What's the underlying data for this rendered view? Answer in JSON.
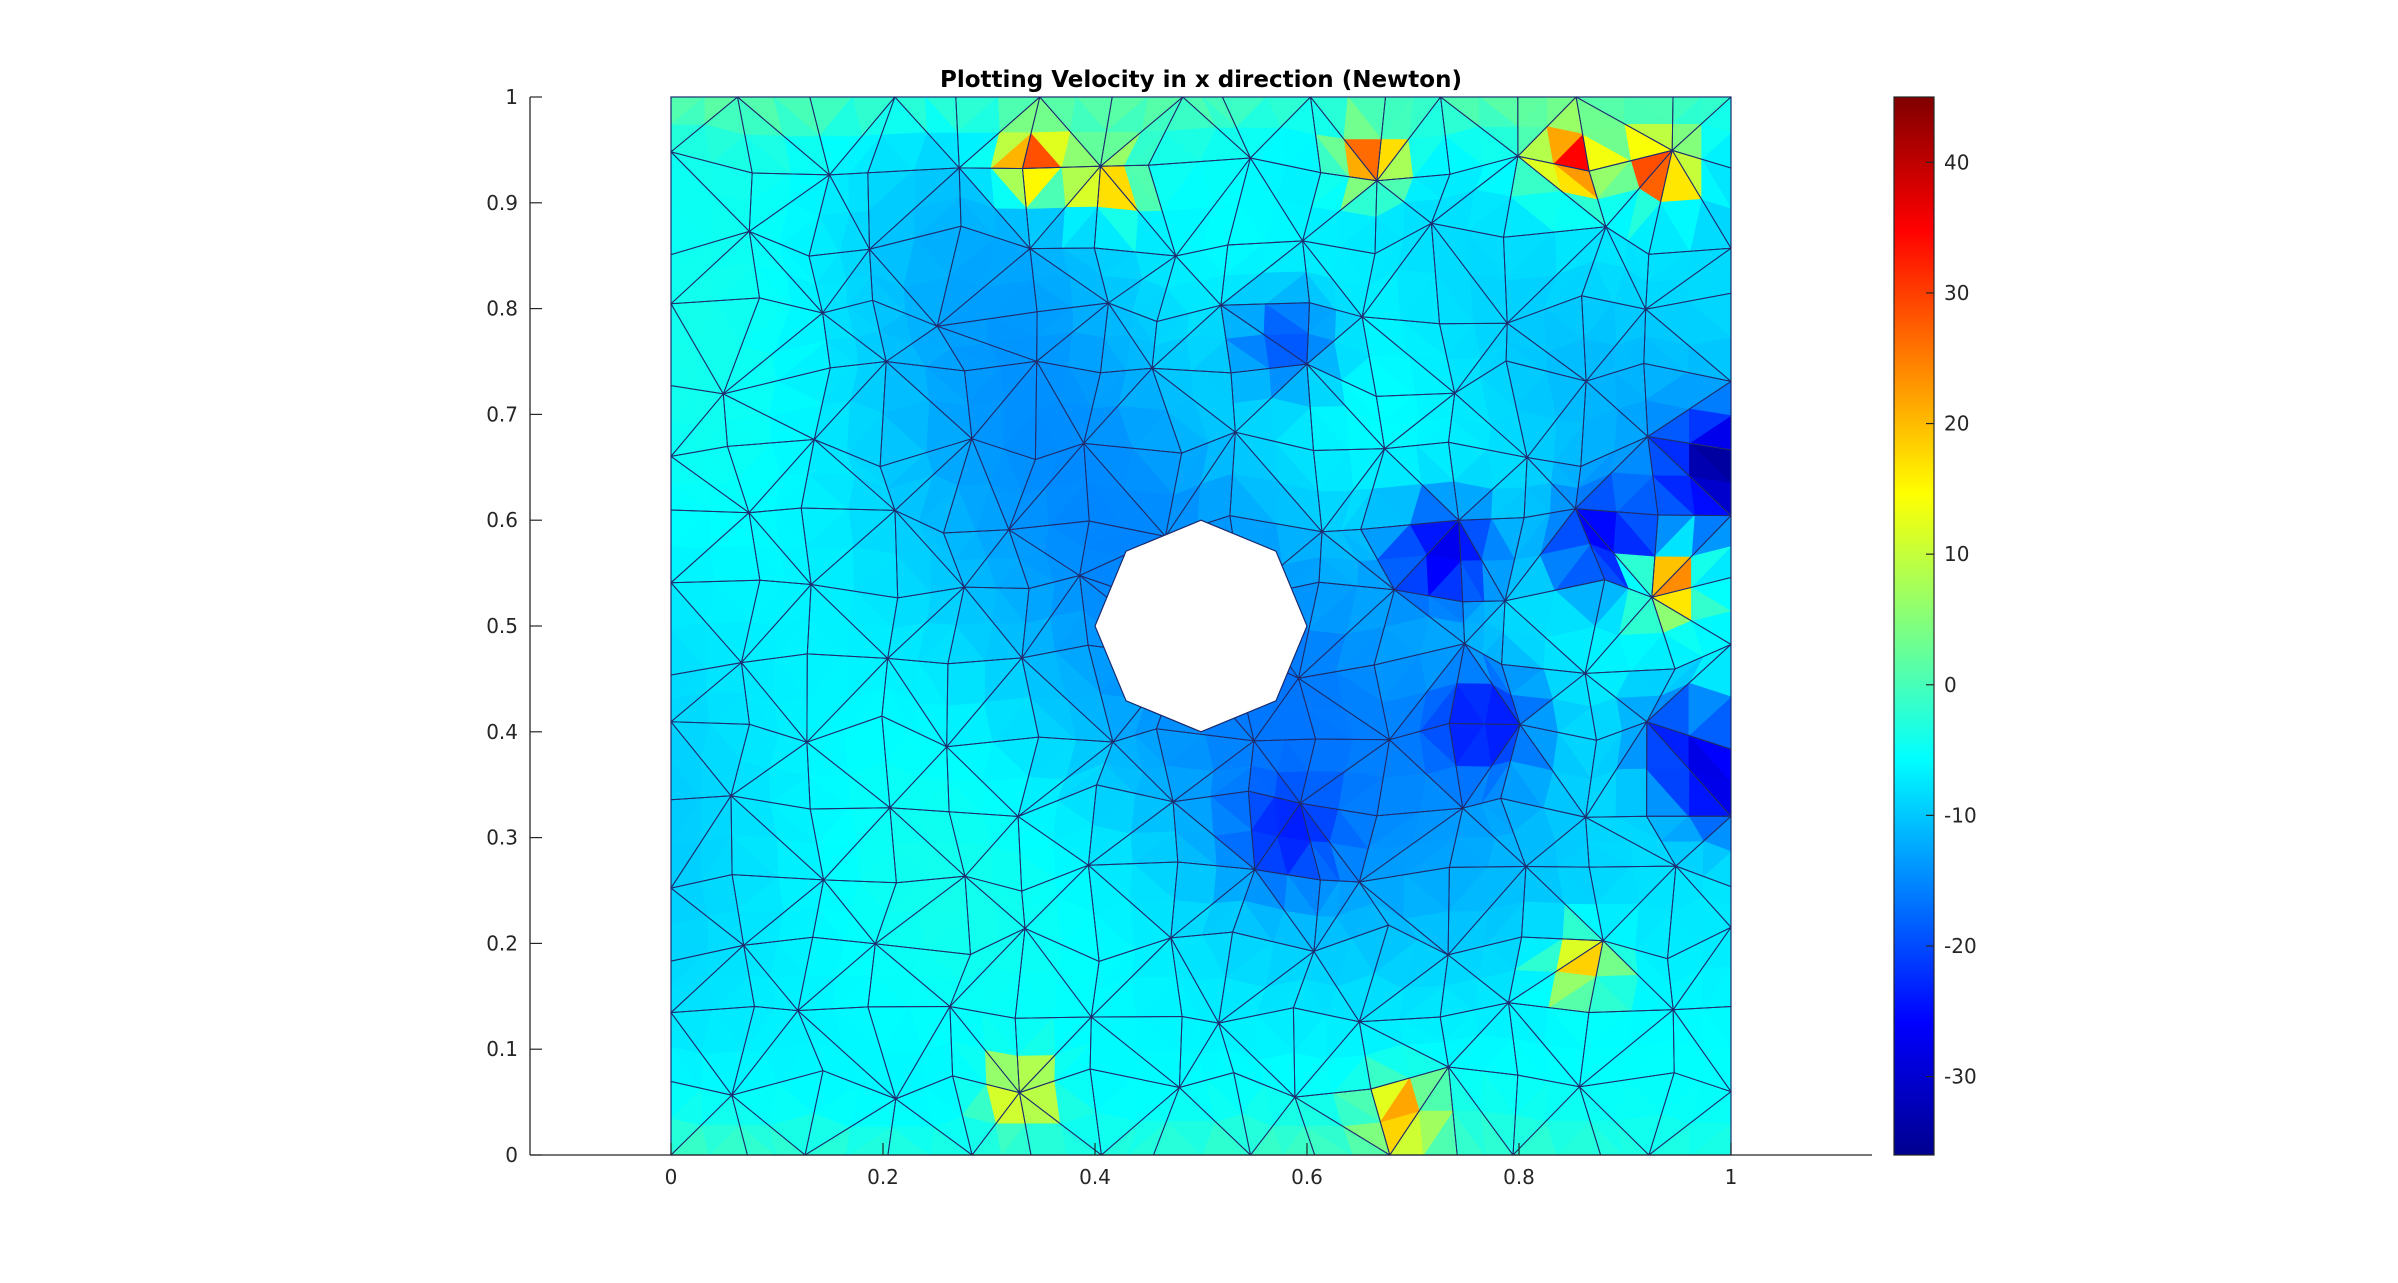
{
  "chart_data": {
    "type": "heatmap",
    "title": "Plotting Velocity in x direction (Newton)",
    "xlabel": "",
    "ylabel": "",
    "xlim": [
      0,
      1
    ],
    "ylim": [
      0,
      1
    ],
    "x_ticks": [
      "0",
      "0.2",
      "0.4",
      "0.6",
      "0.8",
      "1"
    ],
    "y_ticks": [
      "0",
      "0.1",
      "0.2",
      "0.3",
      "0.4",
      "0.5",
      "0.6",
      "0.7",
      "0.8",
      "0.9",
      "1"
    ],
    "colorbar": {
      "colormap": "jet",
      "range": [
        -36,
        45
      ],
      "ticks": [
        "-30",
        "-20",
        "-10",
        "0",
        "10",
        "20",
        "30",
        "40"
      ]
    },
    "domain": {
      "outer": "unit square [0,1] x [0,1]",
      "hole": {
        "shape": "octagon",
        "center": [
          0.5,
          0.5
        ],
        "radius": 0.1
      }
    },
    "grid": false,
    "legend": "none",
    "mesh": "triangular finite-element mesh",
    "hotspots": [
      {
        "x": 0.34,
        "y": 0.94,
        "value": 30
      },
      {
        "x": 0.66,
        "y": 0.94,
        "value": 28
      },
      {
        "x": 0.85,
        "y": 0.94,
        "value": 32
      },
      {
        "x": 0.935,
        "y": 0.935,
        "value": 35
      },
      {
        "x": 0.94,
        "y": 0.54,
        "value": 30
      },
      {
        "x": 0.41,
        "y": 0.92,
        "value": 22
      },
      {
        "x": 0.69,
        "y": 0.04,
        "value": 20
      },
      {
        "x": 0.33,
        "y": 0.06,
        "value": 20
      },
      {
        "x": 0.86,
        "y": 0.18,
        "value": 18
      }
    ],
    "coldspots": [
      {
        "x": 0.73,
        "y": 0.57,
        "value": -28
      },
      {
        "x": 0.88,
        "y": 0.58,
        "value": -26
      },
      {
        "x": 0.99,
        "y": 0.65,
        "value": -30
      },
      {
        "x": 0.99,
        "y": 0.35,
        "value": -28
      },
      {
        "x": 0.58,
        "y": 0.77,
        "value": -22
      },
      {
        "x": 0.77,
        "y": 0.41,
        "value": -22
      },
      {
        "x": 0.95,
        "y": 0.4,
        "value": -22
      },
      {
        "x": 0.58,
        "y": 0.3,
        "value": -18
      }
    ]
  }
}
